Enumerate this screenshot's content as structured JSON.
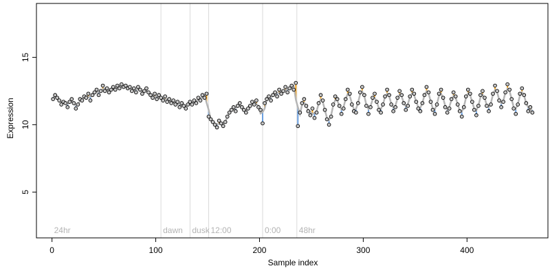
{
  "chart_data": {
    "type": "scatter",
    "title": "",
    "xlabel": "Sample index",
    "ylabel": "Expression",
    "xlim": [
      -15,
      478
    ],
    "ylim": [
      1.6,
      19.0
    ],
    "x_ticks": [
      0,
      100,
      200,
      300,
      400
    ],
    "y_ticks": [
      5,
      10,
      15
    ],
    "grid": false,
    "legend": "none",
    "colors": {
      "point_fill": "#c6c6c6",
      "point_stroke": "#000000",
      "fit_line": "#b5b5b5",
      "residual_up": "#f5a623",
      "residual_down": "#6a9fe0",
      "region_line": "#d9d9d9",
      "region_text": "#b3b3b3"
    },
    "regions": [
      {
        "x": 0,
        "label": "24hr"
      },
      {
        "x": 105,
        "label": "dawn"
      },
      {
        "x": 133,
        "label": "dusk"
      },
      {
        "x": 151,
        "label": "12:00"
      },
      {
        "x": 203,
        "label": "0:00"
      },
      {
        "x": 236,
        "label": "48hr"
      }
    ],
    "region_boundaries": [
      105,
      133,
      151,
      203,
      236
    ],
    "series": [
      {
        "points": [
          [
            1,
            11.9
          ],
          [
            3,
            12.2
          ],
          [
            5,
            12.0
          ],
          [
            7,
            11.8
          ],
          [
            9,
            11.5
          ],
          [
            11,
            11.7
          ],
          [
            13,
            11.6
          ],
          [
            15,
            11.3
          ],
          [
            17,
            11.7
          ],
          [
            19,
            11.9
          ],
          [
            21,
            11.6
          ],
          [
            23,
            11.2
          ],
          [
            25,
            11.5
          ],
          [
            27,
            11.9
          ],
          [
            29,
            11.8
          ],
          [
            31,
            12.1
          ],
          [
            33,
            12.0
          ],
          [
            35,
            12.3
          ],
          [
            37,
            11.8
          ],
          [
            39,
            12.2
          ],
          [
            41,
            12.4
          ],
          [
            43,
            12.6
          ],
          [
            45,
            12.2
          ],
          [
            47,
            12.5
          ],
          [
            49,
            12.9
          ],
          [
            51,
            12.5
          ],
          [
            53,
            12.7
          ],
          [
            55,
            12.4
          ],
          [
            57,
            12.6
          ],
          [
            59,
            12.8
          ],
          [
            61,
            12.6
          ],
          [
            63,
            12.9
          ],
          [
            65,
            12.7
          ],
          [
            67,
            13.0
          ],
          [
            69,
            12.8
          ],
          [
            71,
            12.9
          ],
          [
            73,
            12.7
          ],
          [
            75,
            12.8
          ],
          [
            77,
            12.5
          ],
          [
            79,
            12.7
          ],
          [
            81,
            12.4
          ],
          [
            83,
            12.8
          ],
          [
            85,
            12.6
          ],
          [
            87,
            12.3
          ],
          [
            89,
            12.5
          ],
          [
            91,
            12.7
          ],
          [
            93,
            12.4
          ],
          [
            95,
            12.2
          ],
          [
            97,
            12.0
          ],
          [
            99,
            12.3
          ],
          [
            101,
            11.9
          ],
          [
            103,
            12.2
          ],
          [
            105,
            12.0
          ],
          [
            107,
            11.8
          ],
          [
            109,
            12.1
          ],
          [
            111,
            11.7
          ],
          [
            113,
            11.9
          ],
          [
            115,
            11.6
          ],
          [
            117,
            11.8
          ],
          [
            119,
            11.5
          ],
          [
            121,
            11.7
          ],
          [
            123,
            11.3
          ],
          [
            125,
            11.6
          ],
          [
            127,
            11.4
          ],
          [
            129,
            11.2
          ],
          [
            131,
            11.5
          ],
          [
            133,
            11.7
          ],
          [
            135,
            11.5
          ],
          [
            137,
            11.8
          ],
          [
            139,
            11.6
          ],
          [
            141,
            12.0
          ],
          [
            143,
            11.8
          ],
          [
            145,
            12.2
          ],
          [
            147,
            12.0
          ],
          [
            149,
            12.3
          ],
          [
            151,
            10.6
          ],
          [
            153,
            10.4
          ],
          [
            155,
            10.2
          ],
          [
            157,
            10.0
          ],
          [
            159,
            9.8
          ],
          [
            161,
            10.3
          ],
          [
            163,
            10.1
          ],
          [
            165,
            9.9
          ],
          [
            167,
            10.2
          ],
          [
            169,
            10.6
          ],
          [
            171,
            10.9
          ],
          [
            173,
            11.1
          ],
          [
            175,
            11.3
          ],
          [
            177,
            11.0
          ],
          [
            179,
            11.4
          ],
          [
            181,
            11.6
          ],
          [
            183,
            11.3
          ],
          [
            185,
            11.1
          ],
          [
            187,
            10.9
          ],
          [
            189,
            11.2
          ],
          [
            191,
            11.4
          ],
          [
            193,
            11.7
          ],
          [
            195,
            11.5
          ],
          [
            197,
            11.8
          ],
          [
            199,
            11.3
          ],
          [
            201,
            11.1
          ],
          [
            203,
            10.1
          ],
          [
            205,
            11.6
          ],
          [
            207,
            11.9
          ],
          [
            209,
            12.1
          ],
          [
            211,
            11.8
          ],
          [
            213,
            12.2
          ],
          [
            215,
            12.4
          ],
          [
            217,
            12.1
          ],
          [
            219,
            12.6
          ],
          [
            221,
            12.3
          ],
          [
            223,
            12.5
          ],
          [
            225,
            12.8
          ],
          [
            227,
            12.4
          ],
          [
            229,
            12.7
          ],
          [
            231,
            12.9
          ],
          [
            233,
            12.6
          ],
          [
            235,
            13.1
          ],
          [
            237,
            9.9
          ],
          [
            239,
            10.9
          ],
          [
            241,
            11.6
          ],
          [
            243,
            11.9
          ],
          [
            245,
            11.4
          ],
          [
            247,
            11.0
          ],
          [
            249,
            10.7
          ],
          [
            251,
            11.2
          ],
          [
            253,
            10.5
          ],
          [
            255,
            10.9
          ],
          [
            257,
            11.6
          ],
          [
            259,
            12.2
          ],
          [
            261,
            11.8
          ],
          [
            263,
            11.1
          ],
          [
            265,
            10.4
          ],
          [
            267,
            10.0
          ],
          [
            269,
            10.6
          ],
          [
            271,
            11.5
          ],
          [
            273,
            12.1
          ],
          [
            275,
            11.9
          ],
          [
            277,
            11.4
          ],
          [
            279,
            10.8
          ],
          [
            281,
            11.2
          ],
          [
            283,
            11.9
          ],
          [
            285,
            12.6
          ],
          [
            287,
            12.3
          ],
          [
            289,
            11.5
          ],
          [
            291,
            11.0
          ],
          [
            293,
            10.9
          ],
          [
            295,
            11.6
          ],
          [
            297,
            12.4
          ],
          [
            299,
            12.8
          ],
          [
            301,
            12.2
          ],
          [
            303,
            11.4
          ],
          [
            305,
            10.8
          ],
          [
            307,
            11.3
          ],
          [
            309,
            12.0
          ],
          [
            311,
            12.3
          ],
          [
            313,
            11.7
          ],
          [
            315,
            11.1
          ],
          [
            317,
            10.9
          ],
          [
            319,
            11.5
          ],
          [
            321,
            12.1
          ],
          [
            323,
            12.6
          ],
          [
            325,
            12.2
          ],
          [
            327,
            11.5
          ],
          [
            329,
            11.0
          ],
          [
            331,
            11.3
          ],
          [
            333,
            12.0
          ],
          [
            335,
            12.5
          ],
          [
            337,
            12.2
          ],
          [
            339,
            11.6
          ],
          [
            341,
            11.1
          ],
          [
            343,
            11.4
          ],
          [
            345,
            12.1
          ],
          [
            347,
            12.6
          ],
          [
            349,
            12.3
          ],
          [
            351,
            11.7
          ],
          [
            353,
            11.2
          ],
          [
            355,
            11.0
          ],
          [
            357,
            11.6
          ],
          [
            359,
            12.2
          ],
          [
            361,
            12.8
          ],
          [
            363,
            12.4
          ],
          [
            365,
            11.7
          ],
          [
            367,
            11.1
          ],
          [
            369,
            10.8
          ],
          [
            371,
            11.5
          ],
          [
            373,
            12.3
          ],
          [
            375,
            12.6
          ],
          [
            377,
            12.0
          ],
          [
            379,
            11.3
          ],
          [
            381,
            10.9
          ],
          [
            383,
            11.2
          ],
          [
            385,
            11.9
          ],
          [
            387,
            12.4
          ],
          [
            389,
            12.1
          ],
          [
            391,
            11.5
          ],
          [
            393,
            11.0
          ],
          [
            395,
            10.6
          ],
          [
            397,
            11.3
          ],
          [
            399,
            12.1
          ],
          [
            401,
            12.6
          ],
          [
            403,
            12.3
          ],
          [
            405,
            11.7
          ],
          [
            407,
            11.1
          ],
          [
            409,
            10.7
          ],
          [
            411,
            11.4
          ],
          [
            413,
            12.2
          ],
          [
            415,
            12.5
          ],
          [
            417,
            12.0
          ],
          [
            419,
            11.4
          ],
          [
            421,
            11.0
          ],
          [
            423,
            11.5
          ],
          [
            425,
            12.3
          ],
          [
            427,
            12.9
          ],
          [
            429,
            12.5
          ],
          [
            431,
            11.8
          ],
          [
            433,
            11.3
          ],
          [
            435,
            11.7
          ],
          [
            437,
            12.4
          ],
          [
            439,
            13.0
          ],
          [
            441,
            12.6
          ],
          [
            443,
            11.9
          ],
          [
            445,
            11.2
          ],
          [
            447,
            10.8
          ],
          [
            449,
            11.5
          ],
          [
            451,
            12.3
          ],
          [
            453,
            12.7
          ],
          [
            455,
            12.2
          ],
          [
            457,
            11.6
          ],
          [
            459,
            11.0
          ],
          [
            461,
            11.3
          ],
          [
            463,
            10.9
          ]
        ]
      }
    ]
  }
}
